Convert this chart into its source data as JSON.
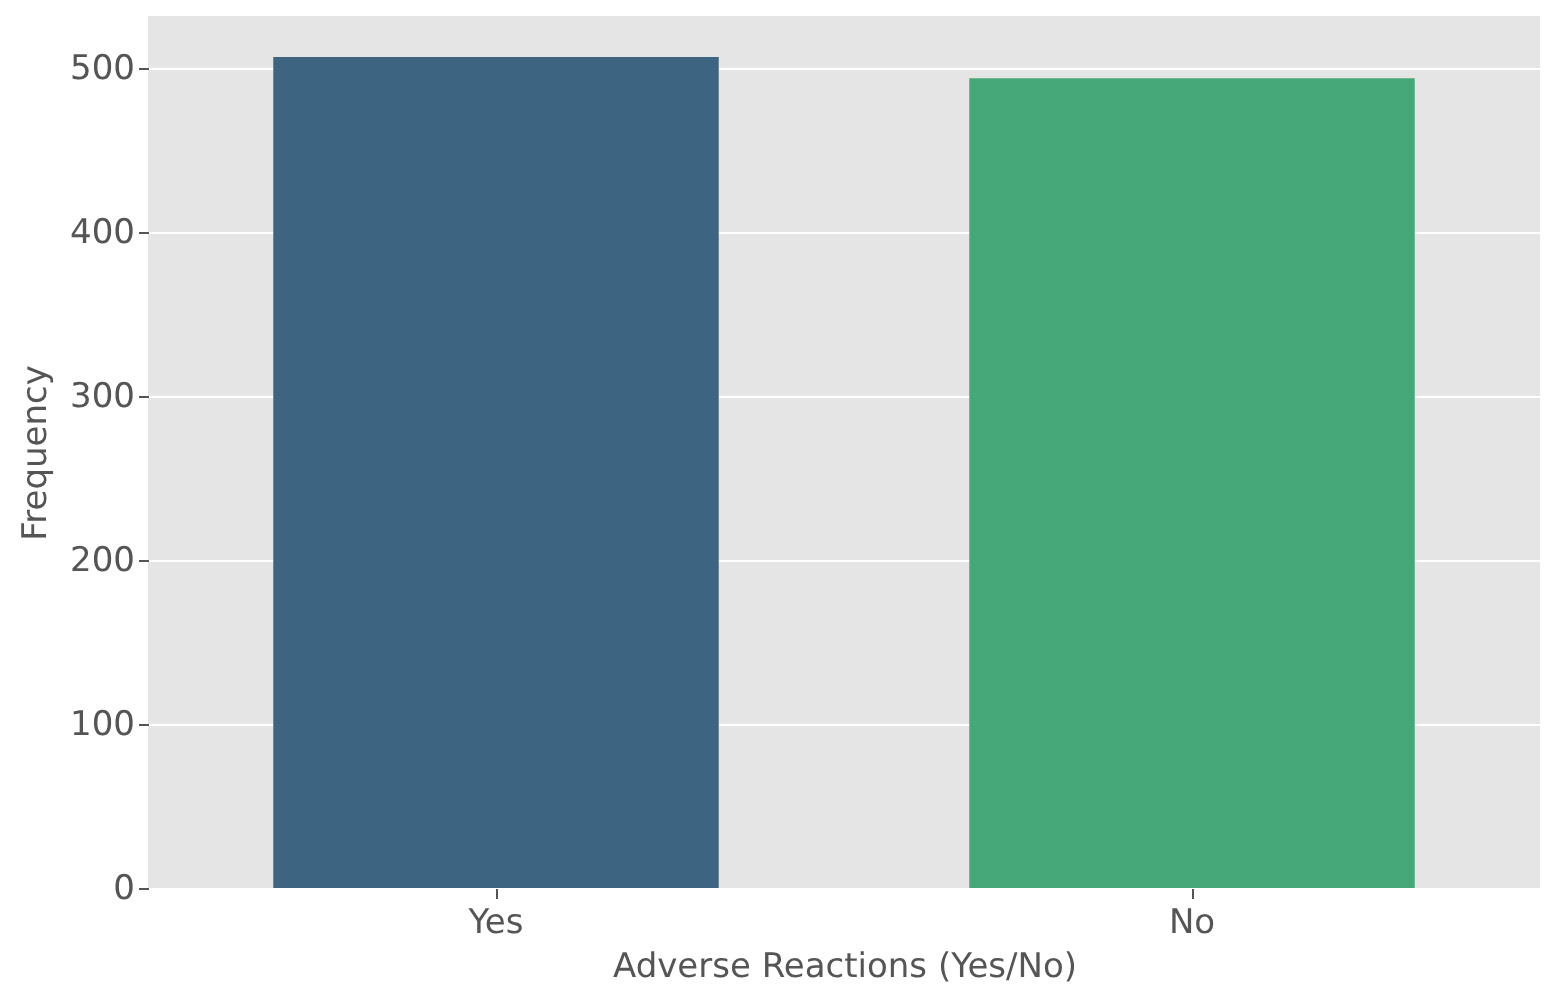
{
  "chart_data": {
    "type": "bar",
    "xlabel": "Adverse Reactions (Yes/No)",
    "ylabel": "Frequency",
    "categories": [
      "Yes",
      "No"
    ],
    "values": [
      507,
      494
    ],
    "colors": [
      "#3d6480",
      "#46a878"
    ],
    "ylim": [
      0,
      532
    ],
    "yticks": [
      0,
      100,
      200,
      300,
      400,
      500
    ],
    "grid": "y"
  }
}
